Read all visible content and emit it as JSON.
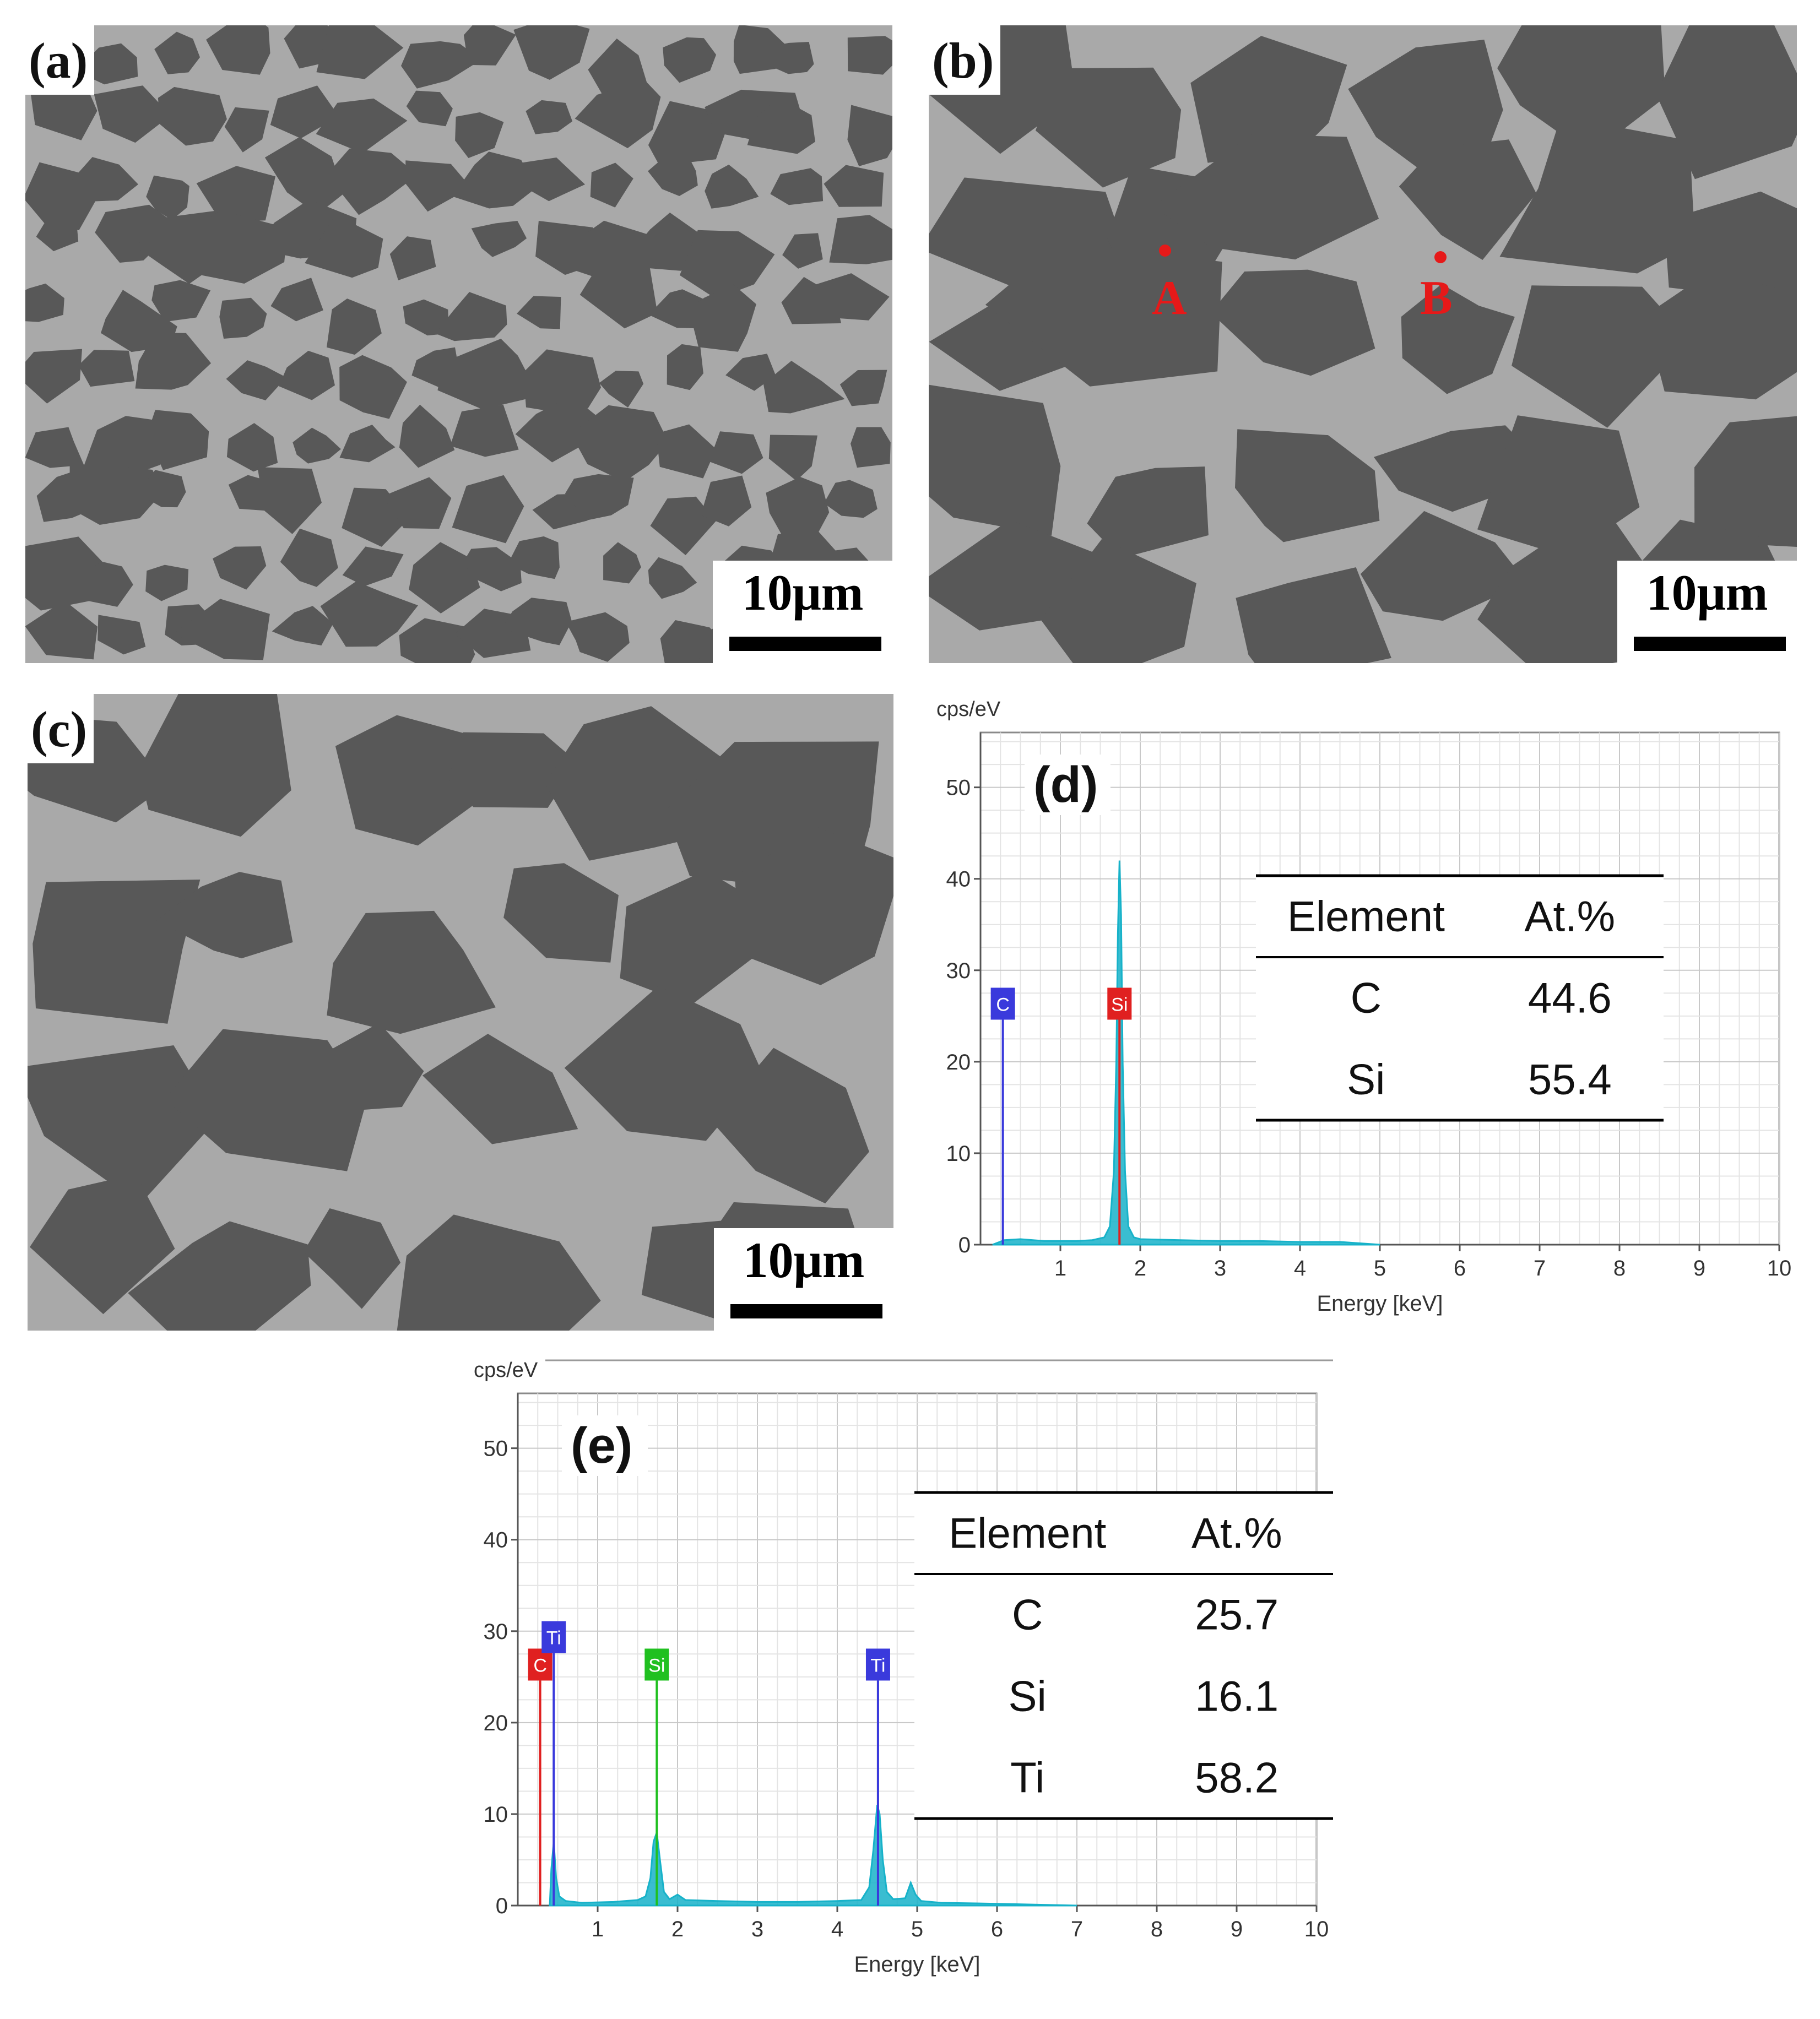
{
  "panels": {
    "a": {
      "label": "(a)",
      "scale": "10μm"
    },
    "b": {
      "label": "(b)",
      "scale": "10μm",
      "points": [
        "A",
        "B"
      ]
    },
    "c": {
      "label": "(c)",
      "scale": "10μm"
    }
  },
  "colors": {
    "sem_matrix": "#a9a9a9",
    "sem_grain": "#585858",
    "marker": "#e61919",
    "spectrum": "#17b2c9",
    "c_line": "#3a3adc",
    "c_line_e": "#e02020",
    "si_line": "#e02020",
    "si_line_e": "#20c020",
    "ti_line": "#3a3adc"
  },
  "chart_data": [
    {
      "type": "line",
      "panel_label": "(d)",
      "ylabel": "cps/eV",
      "xlabel": "Energy [keV]",
      "xlim": [
        0,
        10
      ],
      "ylim": [
        0,
        56
      ],
      "xticks": [
        1,
        2,
        3,
        4,
        5,
        6,
        7,
        8,
        9,
        10
      ],
      "yticks": [
        0,
        10,
        20,
        30,
        40,
        50
      ],
      "grid": true,
      "element_markers": [
        {
          "name": "C",
          "energy": 0.28,
          "color": "#3a3adc"
        },
        {
          "name": "Si",
          "energy": 1.74,
          "color": "#e02020"
        }
      ],
      "spectrum": {
        "x": [
          0.15,
          0.3,
          0.5,
          0.8,
          1.0,
          1.2,
          1.4,
          1.55,
          1.62,
          1.67,
          1.7,
          1.72,
          1.74,
          1.76,
          1.78,
          1.81,
          1.85,
          1.92,
          2.0,
          2.5,
          3.0,
          3.5,
          4.0,
          4.5,
          5.0
        ],
        "y": [
          0,
          0.5,
          0.6,
          0.4,
          0.4,
          0.4,
          0.5,
          0.8,
          2,
          8,
          20,
          34,
          42,
          36,
          20,
          8,
          2,
          0.8,
          0.6,
          0.5,
          0.4,
          0.4,
          0.3,
          0.3,
          0
        ]
      },
      "table": {
        "headers": [
          "Element",
          "At.%"
        ],
        "rows": [
          [
            "C",
            "44.6"
          ],
          [
            "Si",
            "55.4"
          ]
        ]
      }
    },
    {
      "type": "line",
      "panel_label": "(e)",
      "ylabel": "cps/eV",
      "xlabel": "Energy [keV]",
      "xlim": [
        0,
        10
      ],
      "ylim": [
        0,
        56
      ],
      "xticks": [
        1,
        2,
        3,
        4,
        5,
        6,
        7,
        8,
        9,
        10
      ],
      "yticks": [
        0,
        10,
        20,
        30,
        40,
        50
      ],
      "grid": true,
      "element_markers": [
        {
          "name": "C",
          "energy": 0.28,
          "color": "#e02020"
        },
        {
          "name": "Ti",
          "energy": 0.45,
          "color": "#3a3adc",
          "stacked": true
        },
        {
          "name": "Si",
          "energy": 1.74,
          "color": "#20c020"
        },
        {
          "name": "Ti",
          "energy": 4.51,
          "color": "#3a3adc"
        }
      ],
      "spectrum": {
        "x": [
          0.4,
          0.42,
          0.45,
          0.48,
          0.52,
          0.6,
          0.8,
          1.2,
          1.5,
          1.6,
          1.66,
          1.7,
          1.74,
          1.78,
          1.83,
          1.9,
          2.0,
          2.1,
          2.5,
          3.0,
          3.5,
          4.0,
          4.3,
          4.4,
          4.45,
          4.5,
          4.53,
          4.57,
          4.62,
          4.7,
          4.85,
          4.92,
          4.98,
          5.05,
          5.3,
          6.0,
          7.0
        ],
        "y": [
          0,
          4,
          7,
          3,
          1,
          0.5,
          0.3,
          0.4,
          0.6,
          1,
          3,
          7,
          8,
          5,
          1.5,
          0.7,
          1.2,
          0.6,
          0.5,
          0.4,
          0.4,
          0.5,
          0.6,
          2,
          6,
          11,
          10,
          5,
          1.5,
          0.7,
          0.8,
          2.5,
          1.2,
          0.5,
          0.3,
          0.2,
          0
        ]
      },
      "table": {
        "headers": [
          "Element",
          "At.%"
        ],
        "rows": [
          [
            "C",
            "25.7"
          ],
          [
            "Si",
            "16.1"
          ],
          [
            "Ti",
            "58.2"
          ]
        ]
      }
    }
  ]
}
